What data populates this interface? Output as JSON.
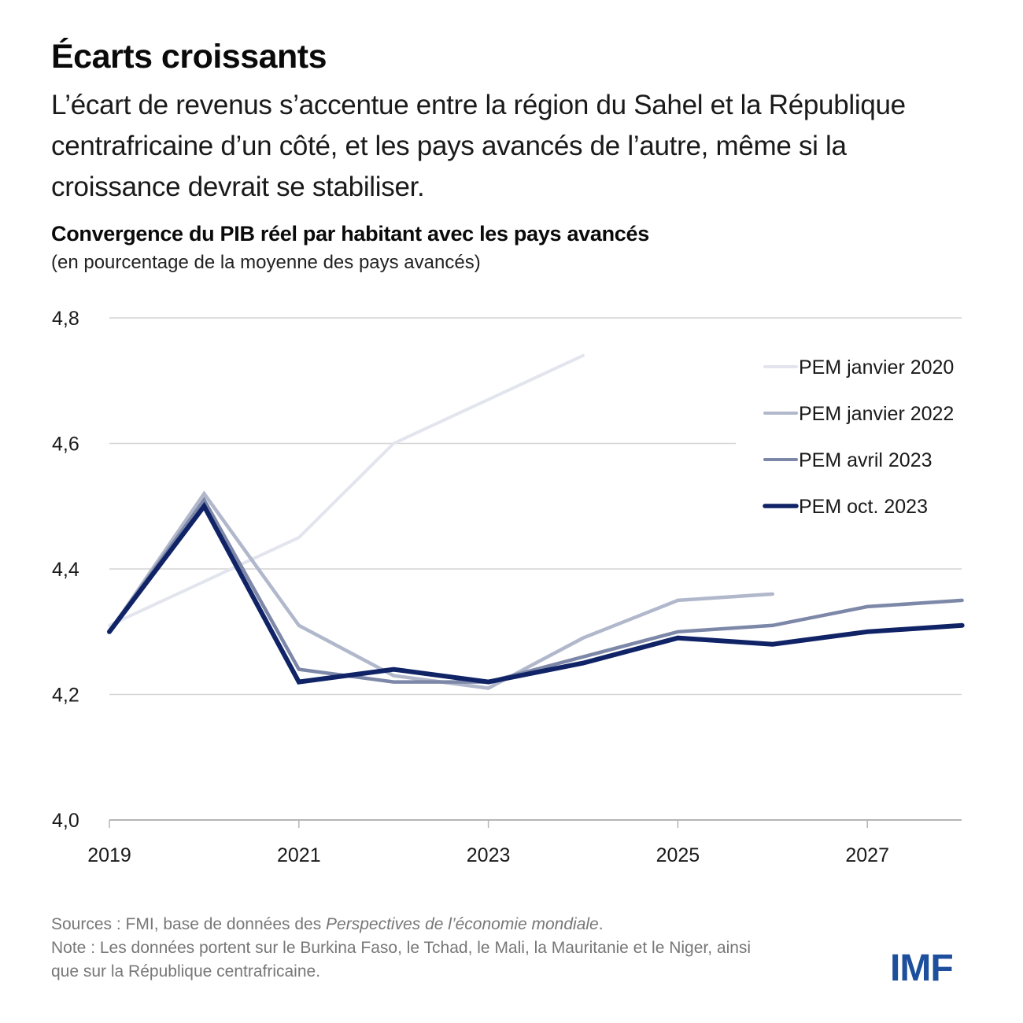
{
  "header": {
    "title": "Écarts croissants",
    "subtitle": "L’écart de revenus s’accentue entre la région du Sahel et la République centrafricaine d’un côté, et les pays avancés de l’autre, même si la croissance devrait se stabiliser."
  },
  "footer": {
    "sources_prefix": "Sources : FMI, base de données des ",
    "sources_italic": "Perspectives de l’économie mondiale",
    "sources_suffix": ".",
    "note": "Note : Les données portent sur le Burkina Faso, le Tchad, le Mali, la Mauritanie et le Niger, ainsi que sur la République centrafricaine."
  },
  "logo": {
    "text": "IMF",
    "color": "#1e4f9c"
  },
  "chart_data": {
    "type": "line",
    "title": "Convergence du PIB réel par habitant avec les pays avancés",
    "subtitle": "(en pourcentage de la moyenne des pays avancés)",
    "xlabel": "",
    "ylabel": "",
    "x": [
      2019,
      2020,
      2021,
      2022,
      2023,
      2024,
      2025,
      2026,
      2027,
      2028
    ],
    "xlim": [
      2019,
      2028
    ],
    "ylim": [
      4.0,
      4.8
    ],
    "x_ticks": [
      2019,
      2021,
      2023,
      2025,
      2027
    ],
    "x_tick_labels": [
      "2019",
      "2021",
      "2023",
      "2025",
      "2027"
    ],
    "y_ticks": [
      4.0,
      4.2,
      4.4,
      4.6,
      4.8
    ],
    "y_tick_labels": [
      "4,0",
      "4,2",
      "4,4",
      "4,6",
      "4,8"
    ],
    "grid": true,
    "legend_position": "top-right",
    "series": [
      {
        "name": "PEM janvier 2020",
        "color": "#e3e5ee",
        "values": [
          4.31,
          4.38,
          4.45,
          4.6,
          4.67,
          4.74,
          null,
          null,
          null,
          null
        ]
      },
      {
        "name": "PEM janvier 2022",
        "color": "#b1b8cc",
        "values": [
          4.3,
          4.52,
          4.31,
          4.23,
          4.21,
          4.29,
          4.35,
          4.36,
          null,
          null
        ]
      },
      {
        "name": "PEM avril 2023",
        "color": "#7d88a8",
        "values": [
          4.3,
          4.51,
          4.24,
          4.22,
          4.22,
          4.26,
          4.3,
          4.31,
          4.34,
          4.35
        ]
      },
      {
        "name": "PEM oct. 2023",
        "color": "#0f2366",
        "values": [
          4.3,
          4.5,
          4.22,
          4.24,
          4.22,
          4.25,
          4.29,
          4.28,
          4.3,
          4.31
        ]
      }
    ]
  }
}
